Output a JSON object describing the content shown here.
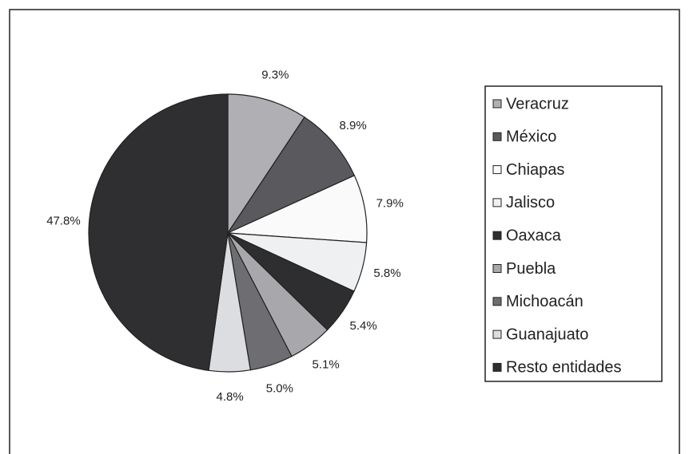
{
  "chart_data": {
    "type": "pie",
    "categories": [
      "Veracruz",
      "México",
      "Chiapas",
      "Jalisco",
      "Oaxaca",
      "Puebla",
      "Michoacán",
      "Guanajuato",
      "Resto entidades"
    ],
    "values": [
      9.3,
      8.9,
      7.9,
      5.8,
      5.4,
      5.1,
      5.0,
      4.8,
      47.8
    ],
    "value_labels": [
      "9.3%",
      "8.9%",
      "7.9%",
      "5.8%",
      "5.4%",
      "5.1%",
      "5.0%",
      "4.8%",
      "47.8%"
    ],
    "colors": [
      "#b0b0b4",
      "#5a5a5e",
      "#fafafa",
      "#eef0f2",
      "#2e2e30",
      "#a8a8ac",
      "#6e6e72",
      "#dcdde0",
      "#2f2f31"
    ],
    "legend": "right"
  }
}
